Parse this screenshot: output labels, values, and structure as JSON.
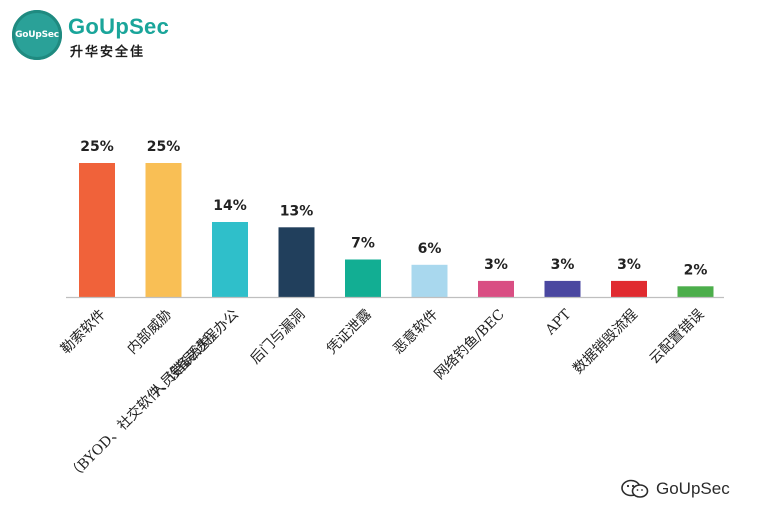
{
  "logo": {
    "badge_text": "GoUpSec",
    "name": "GoUpSec",
    "subtitle": "升华安全佳"
  },
  "watermark": {
    "text": "GoUpSec"
  },
  "colors": {
    "brand": "#1aa59a"
  },
  "chart_data": {
    "type": "bar",
    "categories": [
      "勒索软件",
      "内部威胁",
      "人员错误/远程办公（BYOD、社交软件、设备丢失）",
      "后门与漏洞",
      "凭证泄露",
      "恶意软件",
      "网络钓鱼/BEC",
      "APT",
      "数据销毁流程",
      "云配置错误"
    ],
    "category_lines": [
      [
        "勒索软件"
      ],
      [
        "内部威胁"
      ],
      [
        "人员错误/远程办公",
        "（BYOD、社交软件、设备丢失）"
      ],
      [
        "后门与漏洞"
      ],
      [
        "凭证泄露"
      ],
      [
        "恶意软件"
      ],
      [
        "网络钓鱼/BEC"
      ],
      [
        "APT"
      ],
      [
        "数据销毁流程"
      ],
      [
        "云配置错误"
      ]
    ],
    "values": [
      25,
      25,
      14,
      13,
      7,
      6,
      3,
      3,
      3,
      2
    ],
    "value_labels": [
      "25%",
      "25%",
      "14%",
      "13%",
      "7%",
      "6%",
      "3%",
      "3%",
      "3%",
      "2%"
    ],
    "bar_colors": [
      "#f0623a",
      "#f9bf55",
      "#2fbfca",
      "#213f5c",
      "#12ae93",
      "#a9d8ee",
      "#d94e83",
      "#4a47a0",
      "#e02a2f",
      "#4cae4b"
    ],
    "title": "",
    "xlabel": "",
    "ylabel": "",
    "ylim": [
      0,
      25
    ],
    "grid": false,
    "legend": "none"
  }
}
